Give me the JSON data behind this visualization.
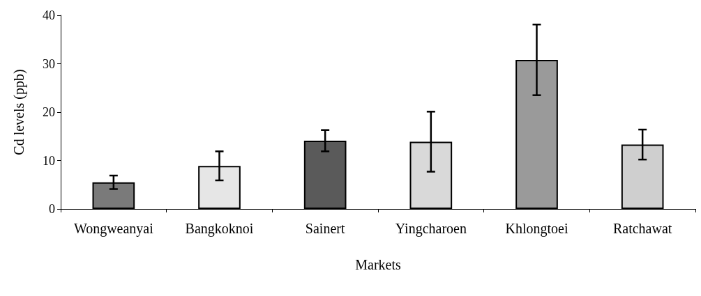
{
  "chart_data": {
    "type": "bar",
    "xlabel": "Markets",
    "ylabel": "Cd levels (ppb)",
    "categories": [
      "Wongweanyai",
      "Bangkoknoi",
      "Sainert",
      "Yingcharoen",
      "Khlongtoei",
      "Ratchawat"
    ],
    "values": [
      5.5,
      8.9,
      14.1,
      13.9,
      30.8,
      13.3
    ],
    "errors": [
      1.4,
      3.0,
      2.2,
      6.2,
      7.3,
      3.1
    ],
    "colors": [
      "#7a7a7a",
      "#e6e6e6",
      "#5a5a5a",
      "#d9d9d9",
      "#9a9a9a",
      "#cfcfcf"
    ],
    "ylim": [
      0,
      40
    ],
    "yticks": [
      0,
      10,
      20,
      30,
      40
    ],
    "grid": false
  }
}
